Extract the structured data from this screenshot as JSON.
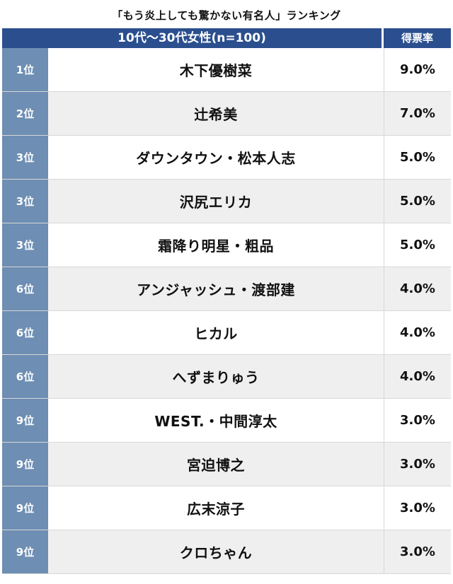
{
  "title": "「もう炎上しても驚かない有名人」ランキング",
  "header": {
    "group": "10代〜30代女性(n=100)",
    "rate": "得票率"
  },
  "rows": [
    {
      "rank": "1位",
      "name": "木下優樹菜",
      "rate": "9.0%"
    },
    {
      "rank": "2位",
      "name": "辻希美",
      "rate": "7.0%"
    },
    {
      "rank": "3位",
      "name": "ダウンタウン・松本人志",
      "rate": "5.0%"
    },
    {
      "rank": "3位",
      "name": "沢尻エリカ",
      "rate": "5.0%"
    },
    {
      "rank": "3位",
      "name": "霜降り明星・粗品",
      "rate": "5.0%"
    },
    {
      "rank": "6位",
      "name": "アンジャッシュ・渡部建",
      "rate": "4.0%"
    },
    {
      "rank": "6位",
      "name": "ヒカル",
      "rate": "4.0%"
    },
    {
      "rank": "6位",
      "name": "へずまりゅう",
      "rate": "4.0%"
    },
    {
      "rank": "9位",
      "name": "WEST.・中間淳太",
      "rate": "3.0%"
    },
    {
      "rank": "9位",
      "name": "宮迫博之",
      "rate": "3.0%"
    },
    {
      "rank": "9位",
      "name": "広末涼子",
      "rate": "3.0%"
    },
    {
      "rank": "9位",
      "name": "クロちゃん",
      "rate": "3.0%"
    }
  ],
  "colors": {
    "header_bg": "#2b4f8e",
    "rank_bg": "#6e8eb3",
    "alt_row_bg": "#efefef"
  }
}
